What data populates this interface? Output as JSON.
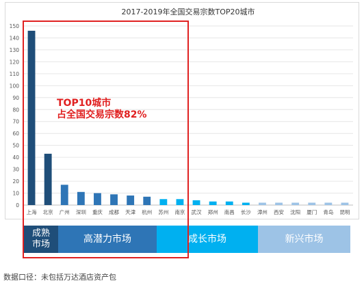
{
  "colors": {
    "mature": "#1f4e79",
    "high_potential": "#2e75b6",
    "growth": "#00b0f0",
    "emerging": "#9dc3e6",
    "highlight": "#e02020"
  },
  "chart_data": {
    "type": "bar",
    "title": "2017-2019年全国交易宗数TOP20城市",
    "categories": [
      "上海",
      "北京",
      "广州",
      "深圳",
      "重庆",
      "成都",
      "天津",
      "杭州",
      "苏州",
      "南京",
      "武汉",
      "郑州",
      "南昌",
      "长沙",
      "漳州",
      "西安",
      "沈阳",
      "厦门",
      "青岛",
      "昆明"
    ],
    "values": [
      146,
      43,
      17,
      11,
      10,
      9,
      8,
      7,
      5,
      5,
      4,
      3,
      3,
      2,
      2,
      2,
      2,
      2,
      2,
      2
    ],
    "bar_groups": [
      "mature",
      "mature",
      "high_potential",
      "high_potential",
      "high_potential",
      "high_potential",
      "high_potential",
      "high_potential",
      "growth",
      "growth",
      "growth",
      "growth",
      "growth",
      "growth",
      "emerging",
      "emerging",
      "emerging",
      "emerging",
      "emerging",
      "emerging"
    ],
    "ylim": [
      0,
      150
    ],
    "yticks": [
      0,
      10,
      20,
      30,
      40,
      50,
      60,
      70,
      80,
      90,
      100,
      110,
      120,
      130,
      140,
      150
    ],
    "grid": true,
    "xlabel": "",
    "ylabel": ""
  },
  "bands": {
    "mature": "成熟\n市场",
    "high_potential": "高潜力市场",
    "growth": "成长市场",
    "emerging": "新兴市场"
  },
  "callout": {
    "line1": "TOP10城市",
    "line2": "占全国交易宗数82%"
  },
  "footnote": "数据口径：未包括万达酒店资产包"
}
